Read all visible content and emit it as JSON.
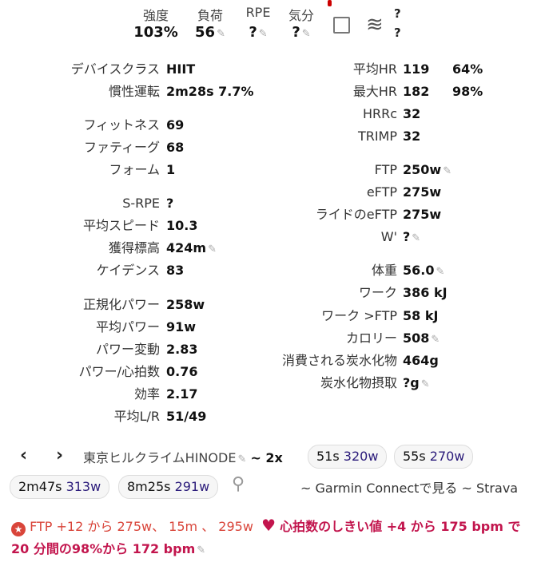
{
  "header": [
    {
      "label": "強度",
      "value": "103%"
    },
    {
      "label": "負荷",
      "value": "56",
      "edit": true
    },
    {
      "label": "RPE",
      "value": "?",
      "edit": true
    },
    {
      "label": "気分",
      "value": "?",
      "edit": true
    }
  ],
  "weather": {
    "icon": "wind-icon",
    "top": "?",
    "bottom": "?"
  },
  "left": [
    {
      "label": "デバイスクラス",
      "value": "HIIT"
    },
    {
      "label": "慣性運転",
      "value": "2m28s 7.7%"
    },
    {
      "label": "フィットネス",
      "value": "69"
    },
    {
      "label": "ファティーグ",
      "value": "68"
    },
    {
      "label": "フォーム",
      "value": "1"
    },
    {
      "label": "S-RPE",
      "value": "?"
    },
    {
      "label": "平均スピード",
      "value": "10.3"
    },
    {
      "label": "獲得標高",
      "value": "424m",
      "edit": true
    },
    {
      "label": "ケイデンス",
      "value": "83"
    },
    {
      "label": "正規化パワー",
      "value": "258w"
    },
    {
      "label": "平均パワー",
      "value": "91w"
    },
    {
      "label": "パワー変動",
      "value": "2.83"
    },
    {
      "label": "パワー/心拍数",
      "value": "0.76"
    },
    {
      "label": "効率",
      "value": "2.17"
    },
    {
      "label": "平均L/R",
      "value": "51/49"
    }
  ],
  "right": [
    {
      "label": "平均HR",
      "value": "119",
      "pct": "64%"
    },
    {
      "label": "最大HR",
      "value": "182",
      "pct": "98%"
    },
    {
      "label": "HRRc",
      "value": "32"
    },
    {
      "label": "TRIMP",
      "value": "32"
    },
    {
      "label": "FTP",
      "value": "250w",
      "edit": true
    },
    {
      "label": "eFTP",
      "value": "275w"
    },
    {
      "label": "ライドのeFTP",
      "value": "275w"
    },
    {
      "label": "W'",
      "value": "?",
      "edit": true
    },
    {
      "label": "体重",
      "value": "56.0",
      "edit": true
    },
    {
      "label": "ワーク",
      "value": "386 kJ"
    },
    {
      "label": "ワーク >FTP",
      "value": "58 kJ"
    },
    {
      "label": "カロリー",
      "value": "508",
      "edit": true
    },
    {
      "label": "消費される炭水化物",
      "value": "464g"
    },
    {
      "label": "炭水化物摂取",
      "value": "?g",
      "edit": true
    }
  ],
  "nav": {
    "route": "東京ヒルクライムHINODE",
    "intervals": "~ 2x"
  },
  "chips": [
    {
      "time": "51s",
      "power": "320w"
    },
    {
      "time": "55s",
      "power": "270w"
    },
    {
      "time": "2m47s",
      "power": "313w"
    },
    {
      "time": "8m25s",
      "power": "291w"
    }
  ],
  "links": {
    "prefix": "~ ",
    "garmin": "Garmin Connectで見る",
    "sep": " ~ ",
    "strava": "Strava"
  },
  "achievements": {
    "ftp": "FTP +12 から 275w、 15m 、 295w",
    "hr": "心拍数のしきい値 +4 から 175 bpm で 20 分間の98%から 172 bpm"
  },
  "colors": {
    "ftp": "#d9453a",
    "hr": "#c2154d",
    "chip_power": "#2a1a7a"
  }
}
